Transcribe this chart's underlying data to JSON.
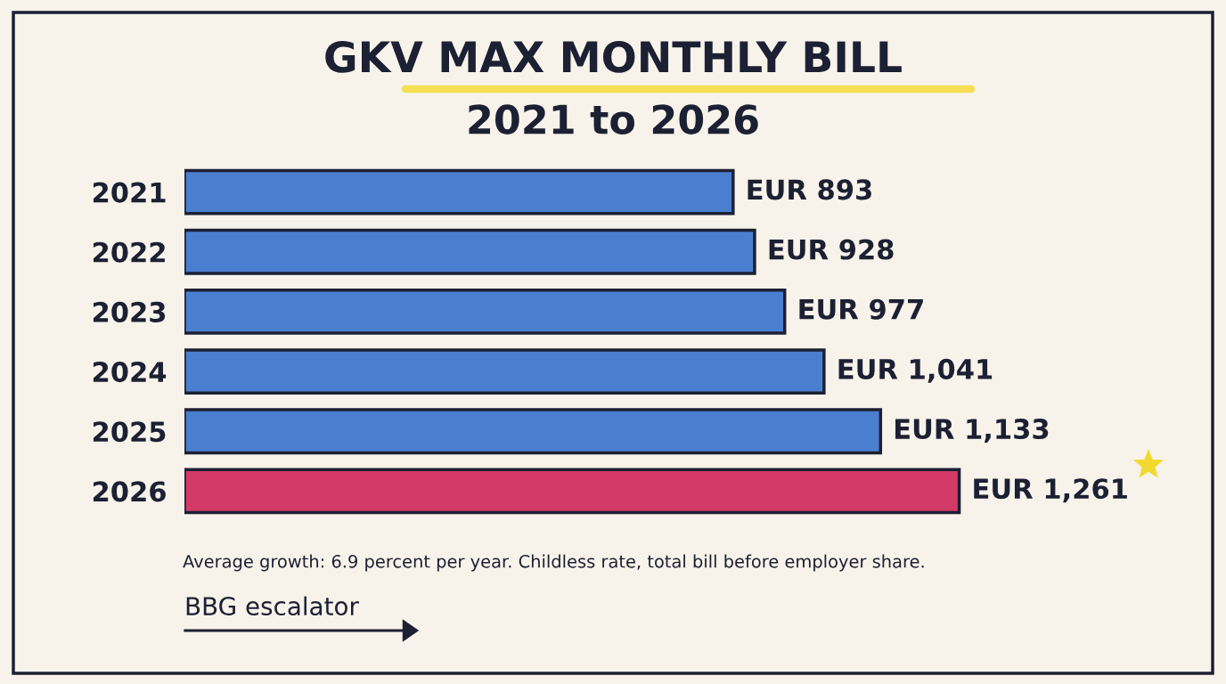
{
  "chart_data": {
    "type": "bar",
    "orientation": "horizontal",
    "title": "GKV MAX MONTHLY BILL",
    "subtitle": "2021 to 2026",
    "categories": [
      "2021",
      "2022",
      "2023",
      "2024",
      "2025",
      "2026"
    ],
    "values": [
      893,
      928,
      977,
      1041,
      1133,
      1261
    ],
    "colors": [
      "#4a7fd0",
      "#4a7fd0",
      "#4a7fd0",
      "#4a7fd0",
      "#4a7fd0",
      "#d43a68"
    ],
    "value_labels": [
      "EUR 893",
      "EUR 928",
      "EUR 977",
      "EUR 1,041",
      "EUR 1,133",
      "EUR 1,261"
    ],
    "annotations": [
      "Average growth: 6.9 percent per year. Childless rate, total bill before employer share.",
      "BBG escalator"
    ],
    "grid": false,
    "legend": false
  }
}
